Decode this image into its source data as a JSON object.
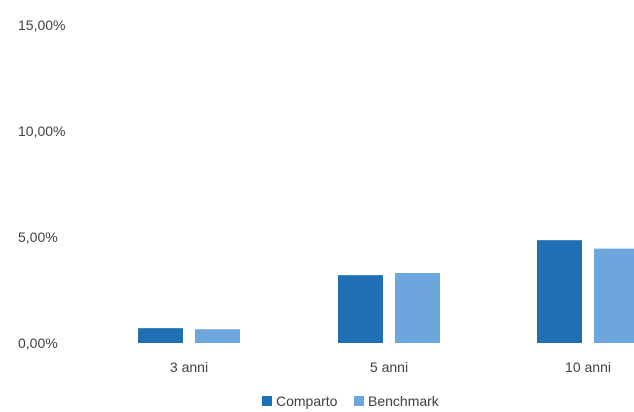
{
  "chart_data": {
    "type": "bar",
    "title": "",
    "xlabel": "",
    "ylabel": "",
    "categories": [
      "3 anni",
      "5 anni",
      "10 anni"
    ],
    "series": [
      {
        "name": "Comparto",
        "color": "#1f6fb4",
        "values": [
          0.7,
          3.2,
          4.85
        ]
      },
      {
        "name": "Benchmark",
        "color": "#6ca6dc",
        "values": [
          0.65,
          3.3,
          4.45
        ]
      }
    ],
    "ylim": [
      0,
      15
    ],
    "yticks": [
      0,
      5,
      10,
      15
    ],
    "ytick_labels": [
      "0,00%",
      "5,00%",
      "10,00%",
      "15,00%"
    ],
    "grid": false,
    "legend_position": "bottom-center"
  }
}
